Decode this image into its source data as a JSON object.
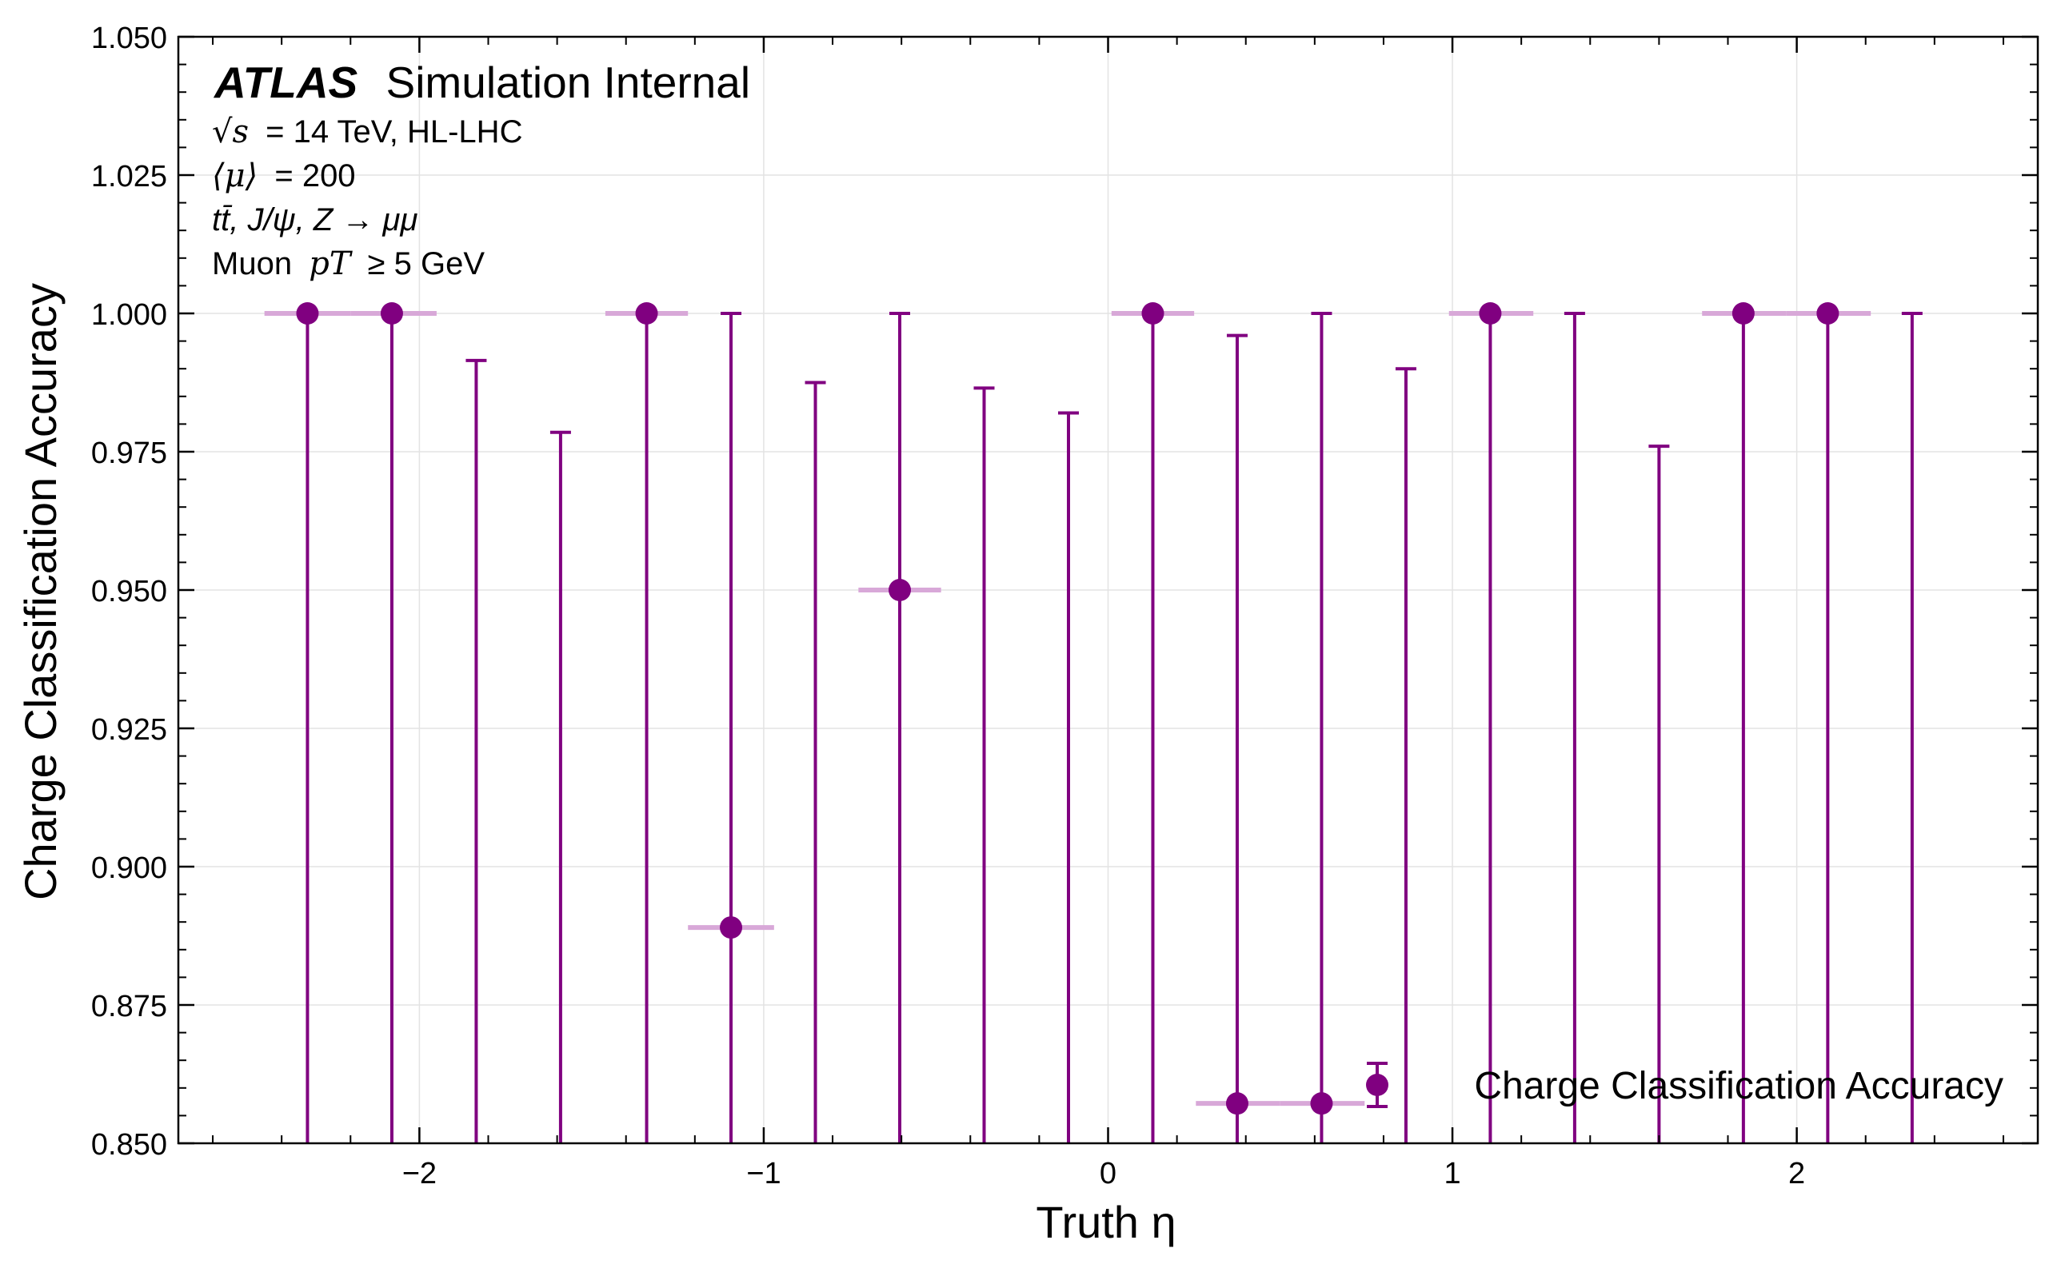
{
  "chart_data": {
    "type": "scatter",
    "title": "",
    "xlabel": "Truth η",
    "ylabel": "Charge Classification Accuracy",
    "xlim": [
      -2.7,
      2.7
    ],
    "ylim": [
      0.85,
      1.05
    ],
    "xticks": [
      -2,
      -1,
      0,
      1,
      2
    ],
    "xtick_labels": [
      "−2",
      "−1",
      "0",
      "1",
      "2"
    ],
    "yticks": [
      0.85,
      0.875,
      0.9,
      0.925,
      0.95,
      0.975,
      1.0,
      1.025,
      1.05
    ],
    "ytick_labels": [
      "0.850",
      "0.875",
      "0.900",
      "0.925",
      "0.950",
      "0.975",
      "1.000",
      "1.025",
      "1.050"
    ],
    "grid": true,
    "legend_position": "bottom-right",
    "series_color": "#800080",
    "xerr_color": "#d8a8d8",
    "annotation": {
      "experiment": "ATLAS",
      "status": "Simulation Internal",
      "energy_prefix": "√s",
      "energy": "= 14 TeV, HL-LHC",
      "pileup_symbol": "⟨μ⟩",
      "pileup": "= 200",
      "samples": "tt̄, J/ψ, Z → μμ",
      "cut_prefix": "Muon",
      "cut_var": "pT",
      "cut": "≥ 5 GeV"
    },
    "series": [
      {
        "name": "Charge Classification Accuracy",
        "points": [
          {
            "x": -2.325,
            "y": 1.0,
            "y_low": 0.85,
            "y_high": 1.0,
            "x_low": -2.45,
            "x_high": -2.2
          },
          {
            "x": -2.08,
            "y": 1.0,
            "y_low": 0.85,
            "y_high": 1.0,
            "x_low": -2.2,
            "x_high": -1.95
          },
          {
            "x": -1.835,
            "y": null,
            "y_low": 0.85,
            "y_high": 0.9915
          },
          {
            "x": -1.59,
            "y": null,
            "y_low": 0.85,
            "y_high": 0.9785
          },
          {
            "x": -1.34,
            "y": 1.0,
            "y_low": 0.85,
            "y_high": 1.0,
            "x_low": -1.46,
            "x_high": -1.22
          },
          {
            "x": -1.095,
            "y": 0.889,
            "y_low": 0.85,
            "y_high": 1.0,
            "x_low": -1.22,
            "x_high": -0.97
          },
          {
            "x": -0.85,
            "y": null,
            "y_low": 0.85,
            "y_high": 0.9875
          },
          {
            "x": -0.605,
            "y": 0.95,
            "y_low": 0.85,
            "y_high": 1.0,
            "x_low": -0.725,
            "x_high": -0.485
          },
          {
            "x": -0.36,
            "y": null,
            "y_low": 0.85,
            "y_high": 0.9865
          },
          {
            "x": -0.115,
            "y": null,
            "y_low": 0.85,
            "y_high": 0.982
          },
          {
            "x": 0.13,
            "y": 1.0,
            "y_low": 0.85,
            "y_high": 1.0,
            "x_low": 0.01,
            "x_high": 0.25
          },
          {
            "x": 0.375,
            "y": 0.8572,
            "y_low": 0.85,
            "y_high": 0.996,
            "x_low": 0.255,
            "x_high": 0.5
          },
          {
            "x": 0.62,
            "y": 0.8572,
            "y_low": 0.85,
            "y_high": 1.0,
            "x_low": 0.5,
            "x_high": 0.745
          },
          {
            "x": 0.865,
            "y": null,
            "y_low": 0.85,
            "y_high": 0.99
          },
          {
            "x": 1.11,
            "y": 1.0,
            "y_low": 0.85,
            "y_high": 1.0,
            "x_low": 0.99,
            "x_high": 1.235
          },
          {
            "x": 1.355,
            "y": null,
            "y_low": 0.85,
            "y_high": 1.0
          },
          {
            "x": 1.6,
            "y": null,
            "y_low": 0.85,
            "y_high": 0.976
          },
          {
            "x": 1.845,
            "y": 1.0,
            "y_low": 0.85,
            "y_high": 1.0,
            "x_low": 1.725,
            "x_high": 1.97
          },
          {
            "x": 2.09,
            "y": 1.0,
            "y_low": 0.85,
            "y_high": 1.0,
            "x_low": 1.97,
            "x_high": 2.215
          },
          {
            "x": 2.335,
            "y": null,
            "y_low": 0.85,
            "y_high": 1.0
          }
        ]
      }
    ]
  }
}
